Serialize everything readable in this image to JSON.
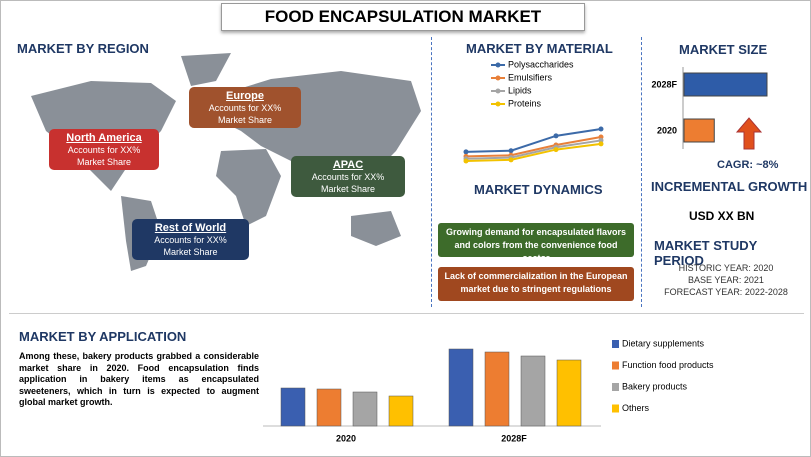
{
  "title": "FOOD ENCAPSULATION MARKET",
  "region": {
    "heading": "MARKET BY REGION",
    "callouts": [
      {
        "name": "North America",
        "line1": "Accounts for XX%",
        "line2": "Market Share",
        "color": "#c8312f"
      },
      {
        "name": "Europe",
        "line1": "Accounts for XX%",
        "line2": "Market Share",
        "color": "#a0522d"
      },
      {
        "name": "APAC",
        "line1": "Accounts for XX%",
        "line2": "Market Share",
        "color": "#3e5a3e"
      },
      {
        "name": "Rest of World",
        "line1": "Accounts for XX%",
        "line2": "Market Share",
        "color": "#1f3864"
      }
    ]
  },
  "material": {
    "heading": "MARKET BY MATERIAL",
    "chart_data": {
      "type": "line",
      "categories": [
        null,
        null,
        null,
        null
      ],
      "series": [
        {
          "name": "Polysaccharides",
          "color": "#3c6aa8",
          "values": [
            3.0,
            3.1,
            4.4,
            5.0
          ]
        },
        {
          "name": "Emulsifiers",
          "color": "#e8803a",
          "values": [
            2.6,
            2.7,
            3.6,
            4.3
          ]
        },
        {
          "name": "Lipids",
          "color": "#a5a5a5",
          "values": [
            2.4,
            2.5,
            3.4,
            4.0
          ]
        },
        {
          "name": "Proteins",
          "color": "#f2c200",
          "values": [
            2.2,
            2.3,
            3.2,
            3.7
          ]
        }
      ]
    }
  },
  "dynamics": {
    "heading": "MARKET DYNAMICS",
    "items": [
      {
        "text": "Growing demand for encapsulated flavors and colors from the convenience food sector",
        "color": "#3d6b2a"
      },
      {
        "text": "Lack of commercialization in the European market due to stringent regulations",
        "color": "#a0481f"
      }
    ]
  },
  "size": {
    "heading": "MARKET SIZE",
    "chart_data": {
      "type": "hbar",
      "categories": [
        "2028F",
        "2020"
      ],
      "values": [
        85,
        31
      ],
      "colors": [
        "#2e5ca8",
        "#ed7d31"
      ]
    },
    "cagr": "CAGR: ~8%"
  },
  "growth": {
    "heading": "INCREMENTAL GROWTH",
    "value": "USD XX BN"
  },
  "period": {
    "heading": "MARKET STUDY PERIOD",
    "lines": [
      "HISTORIC YEAR: 2020",
      "BASE YEAR: 2021",
      "FORECAST YEAR: 2022-2028"
    ]
  },
  "application": {
    "heading": "MARKET BY APPLICATION",
    "text": "Among these, bakery products grabbed a considerable market share in 2020. Food encapsulation finds application in bakery items as encapsulated sweeteners, which in turn is expected to augment global market growth.",
    "chart_data": {
      "type": "bar",
      "categories": [
        "2020",
        "2028F"
      ],
      "series": [
        {
          "name": "Dietary supplements",
          "color": "#3a5fb0",
          "values": [
            38,
            77
          ]
        },
        {
          "name": "Function food products",
          "color": "#ed7d31",
          "values": [
            37,
            74
          ]
        },
        {
          "name": "Bakery products",
          "color": "#a5a5a5",
          "values": [
            34,
            70
          ]
        },
        {
          "name": "Others",
          "color": "#ffc000",
          "values": [
            30,
            66
          ]
        }
      ]
    }
  }
}
